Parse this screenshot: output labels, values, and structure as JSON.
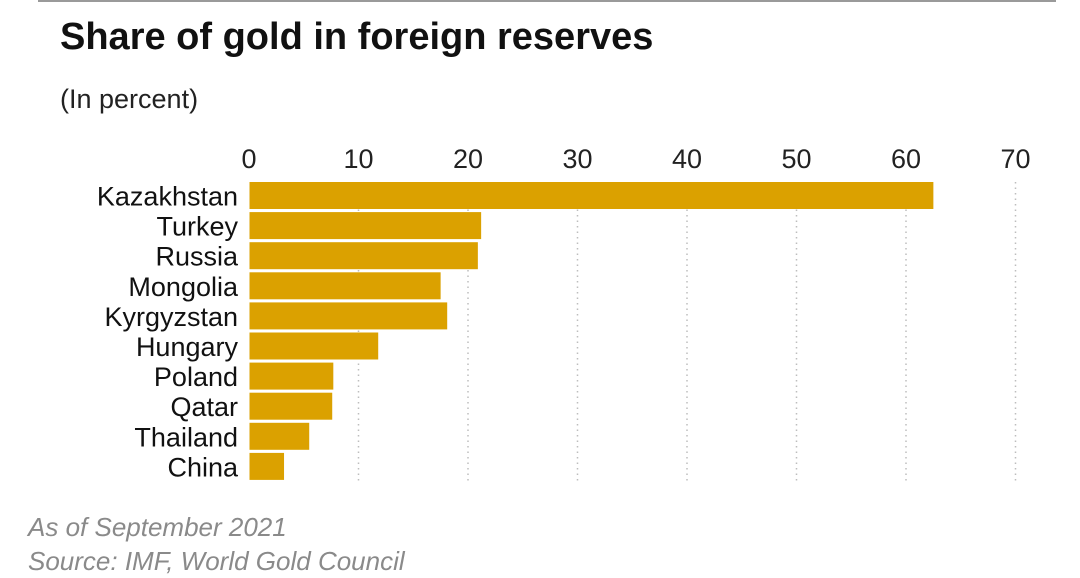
{
  "title": "Share of gold in foreign reserves",
  "subtitle": "(In percent)",
  "notes": {
    "as_of": "As of September 2021",
    "source": "Source: IMF, World Gold Council"
  },
  "colors": {
    "bar": "#dba100",
    "grid": "#bdbdbd",
    "text": "#111111"
  },
  "chart_data": {
    "type": "bar",
    "orientation": "horizontal",
    "categories": [
      "Kazakhstan",
      "Turkey",
      "Russia",
      "Mongolia",
      "Kyrgyzstan",
      "Hungary",
      "Poland",
      "Qatar",
      "Thailand",
      "China"
    ],
    "values": [
      62.5,
      21.2,
      20.9,
      17.5,
      18.1,
      11.8,
      7.7,
      7.6,
      5.5,
      3.2
    ],
    "xlim": [
      0,
      70
    ],
    "x_ticks": [
      "0",
      "10",
      "20",
      "30",
      "40",
      "50",
      "60",
      "70"
    ],
    "tick_values": [
      0,
      10,
      20,
      30,
      40,
      50,
      60,
      70
    ],
    "axis_position": "top",
    "grid": "dotted vertical"
  }
}
